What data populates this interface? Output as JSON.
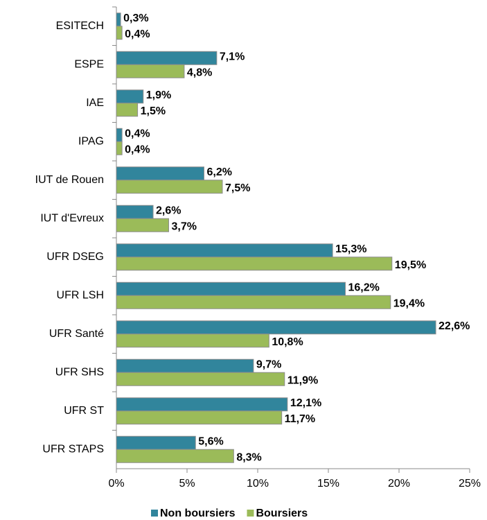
{
  "chart_data": {
    "type": "hbar",
    "categories": [
      "ESITECH",
      "ESPE",
      "IAE",
      "IPAG",
      "IUT de Rouen",
      "IUT d'Evreux",
      "UFR DSEG",
      "UFR LSH",
      "UFR Santé",
      "UFR SHS",
      "UFR ST",
      "UFR STAPS"
    ],
    "series": [
      {
        "name": "Non boursiers",
        "color": "#31859c",
        "values": [
          0.3,
          7.1,
          1.9,
          0.4,
          6.2,
          2.6,
          15.3,
          16.2,
          22.6,
          9.7,
          12.1,
          5.6
        ],
        "value_labels": [
          "0,3%",
          "7,1%",
          "1,9%",
          "0,4%",
          "6,2%",
          "2,6%",
          "15,3%",
          "16,2%",
          "22,6%",
          "9,7%",
          "12,1%",
          "5,6%"
        ]
      },
      {
        "name": "Boursiers",
        "color": "#9bbb59",
        "values": [
          0.4,
          4.8,
          1.5,
          0.4,
          7.5,
          3.7,
          19.5,
          19.4,
          10.8,
          11.9,
          11.7,
          8.3
        ],
        "value_labels": [
          "0,4%",
          "4,8%",
          "1,5%",
          "0,4%",
          "7,5%",
          "3,7%",
          "19,5%",
          "19,4%",
          "10,8%",
          "11,9%",
          "11,7%",
          "8,3%"
        ]
      }
    ],
    "xlim": [
      0,
      25
    ],
    "xticks": [
      {
        "value": 0,
        "label": "0%"
      },
      {
        "value": 5,
        "label": "5%"
      },
      {
        "value": 10,
        "label": "10%"
      },
      {
        "value": 15,
        "label": "15%"
      },
      {
        "value": 20,
        "label": "20%"
      },
      {
        "value": 25,
        "label": "25%"
      }
    ],
    "legend": "bottom"
  }
}
